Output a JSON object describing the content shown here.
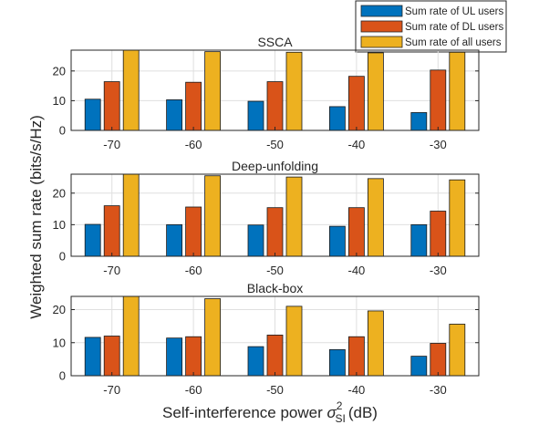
{
  "figure": {
    "ylabel": "Weighted sum rate (bits/s/Hz)",
    "xlabel": "Self-interference power",
    "xlabel_symbol": "σ",
    "xlabel_superscript": "2",
    "xlabel_subscript": "SI",
    "xlabel_unit": "(dB)"
  },
  "legend": {
    "placement": "top-right, above the plots",
    "entries": [
      {
        "label": "Sum rate of UL users",
        "color": "#0072BD"
      },
      {
        "label": "Sum rate of DL users",
        "color": "#D95319"
      },
      {
        "label": "Sum rate of all users",
        "color": "#EDB120"
      }
    ]
  },
  "chart_data": [
    {
      "type": "bar",
      "title": "SSCA",
      "categories": [
        "-70",
        "-60",
        "-50",
        "-40",
        "-30"
      ],
      "ylim": [
        0,
        27
      ],
      "yticks": [
        "0",
        "10",
        "20"
      ],
      "grid": true,
      "series": [
        {
          "name": "Sum rate of UL users",
          "values": [
            10.5,
            10.3,
            9.8,
            8.0,
            6.0
          ]
        },
        {
          "name": "Sum rate of DL users",
          "values": [
            16.4,
            16.2,
            16.4,
            18.2,
            20.3
          ]
        },
        {
          "name": "Sum rate of all users",
          "values": [
            27.0,
            26.5,
            26.3,
            26.1,
            26.3
          ]
        }
      ]
    },
    {
      "type": "bar",
      "title": "Deep-unfolding",
      "categories": [
        "-70",
        "-60",
        "-50",
        "-40",
        "-30"
      ],
      "ylim": [
        0,
        26
      ],
      "yticks": [
        "0",
        "10",
        "20"
      ],
      "grid": true,
      "series": [
        {
          "name": "Sum rate of UL users",
          "values": [
            10.1,
            10.0,
            9.9,
            9.5,
            10.0
          ]
        },
        {
          "name": "Sum rate of DL users",
          "values": [
            16.0,
            15.6,
            15.4,
            15.4,
            14.3
          ]
        },
        {
          "name": "Sum rate of all users",
          "values": [
            26.0,
            25.5,
            25.1,
            24.6,
            24.2
          ]
        }
      ]
    },
    {
      "type": "bar",
      "title": "Black-box",
      "categories": [
        "-70",
        "-60",
        "-50",
        "-40",
        "-30"
      ],
      "ylim": [
        0,
        24
      ],
      "yticks": [
        "0",
        "10",
        "20"
      ],
      "grid": true,
      "series": [
        {
          "name": "Sum rate of UL users",
          "values": [
            11.6,
            11.4,
            8.8,
            7.9,
            5.9
          ]
        },
        {
          "name": "Sum rate of DL users",
          "values": [
            12.0,
            11.8,
            12.3,
            11.8,
            9.8
          ]
        },
        {
          "name": "Sum rate of all users",
          "values": [
            24.0,
            23.3,
            21.0,
            19.6,
            15.6
          ]
        }
      ]
    }
  ]
}
